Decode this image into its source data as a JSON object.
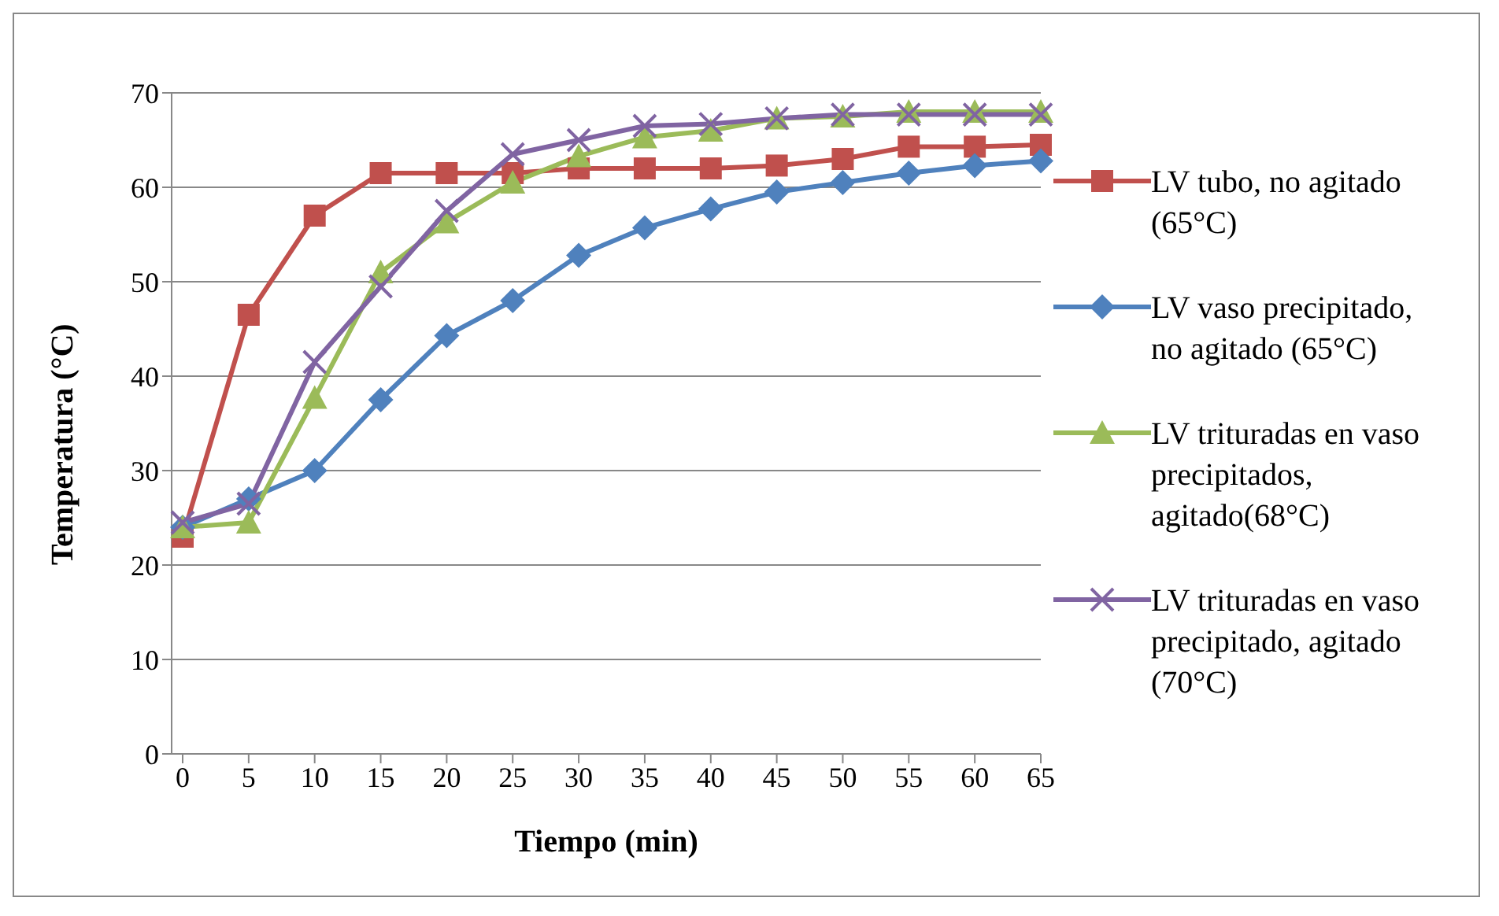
{
  "chart_data": {
    "type": "line",
    "xlabel": "Tiempo (min)",
    "ylabel": "Temperatura  (°C)",
    "categories": [
      "0",
      "5",
      "10",
      "15",
      "20",
      "25",
      "30",
      "35",
      "40",
      "45",
      "50",
      "55",
      "60",
      "65"
    ],
    "ylim": [
      0,
      70
    ],
    "yticks": [
      0,
      10,
      20,
      30,
      40,
      50,
      60,
      70
    ],
    "grid": "y",
    "legend": "right",
    "series": [
      {
        "name": "LV tubo, no agitado (65°C)",
        "color": "#c0504d",
        "marker": "square",
        "values": [
          23,
          46.5,
          57,
          61.5,
          61.5,
          61.5,
          62,
          62,
          62,
          62.3,
          63,
          64.3,
          64.3,
          64.5
        ]
      },
      {
        "name": "LV vaso precipitado, no agitado (65°C)",
        "color": "#4f81bd",
        "marker": "diamond",
        "values": [
          24,
          27,
          30,
          37.5,
          44.3,
          48,
          52.8,
          55.7,
          57.7,
          59.5,
          60.5,
          61.5,
          62.3,
          62.8
        ]
      },
      {
        "name": "LV trituradas en vaso precipitados, agitado(68°C)",
        "color": "#9bbb59",
        "marker": "triangle",
        "values": [
          24,
          24.5,
          37.7,
          51,
          56.3,
          60.5,
          63.3,
          65.3,
          66,
          67.3,
          67.5,
          68,
          68,
          68
        ]
      },
      {
        "name": "LV trituradas en vaso precipitado,  agitado (70°C)",
        "color": "#8064a2",
        "marker": "cross",
        "values": [
          24.5,
          26.5,
          41.5,
          49.5,
          57.5,
          63.5,
          65,
          66.5,
          66.7,
          67.3,
          67.7,
          67.7,
          67.7,
          67.7
        ]
      }
    ]
  }
}
